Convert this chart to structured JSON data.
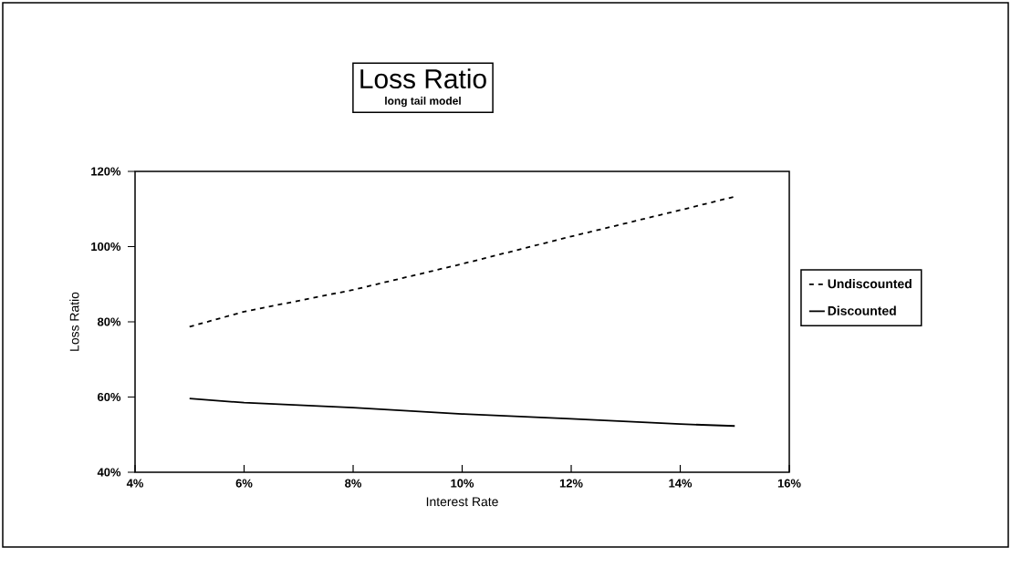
{
  "chart_data": {
    "type": "line",
    "title": "Loss Ratio",
    "subtitle": "long tail model",
    "xlabel": "Interest Rate",
    "ylabel": "Loss Ratio",
    "xlim": [
      4,
      16
    ],
    "ylim": [
      40,
      120
    ],
    "xticks": [
      {
        "value": 4,
        "label": "4%"
      },
      {
        "value": 6,
        "label": "6%"
      },
      {
        "value": 8,
        "label": "8%"
      },
      {
        "value": 10,
        "label": "10%"
      },
      {
        "value": 12,
        "label": "12%"
      },
      {
        "value": 14,
        "label": "14%"
      },
      {
        "value": 16,
        "label": "16%"
      }
    ],
    "yticks": [
      {
        "value": 40,
        "label": "40%"
      },
      {
        "value": 60,
        "label": "60%"
      },
      {
        "value": 80,
        "label": "80%"
      },
      {
        "value": 100,
        "label": "100%"
      },
      {
        "value": 120,
        "label": "120%"
      }
    ],
    "x": [
      5,
      6,
      8,
      10,
      12,
      14,
      15
    ],
    "series": [
      {
        "name": "Undiscounted",
        "color": "#000000",
        "line_style": "dashed",
        "values": [
          78.7,
          82.7,
          88.5,
          95.4,
          102.7,
          109.7,
          113.3
        ]
      },
      {
        "name": "Discounted",
        "color": "#000000",
        "line_style": "solid",
        "values": [
          59.6,
          58.5,
          57.2,
          55.5,
          54.2,
          52.8,
          52.3
        ]
      }
    ],
    "grid": false,
    "legend": "right",
    "marker": "none"
  }
}
